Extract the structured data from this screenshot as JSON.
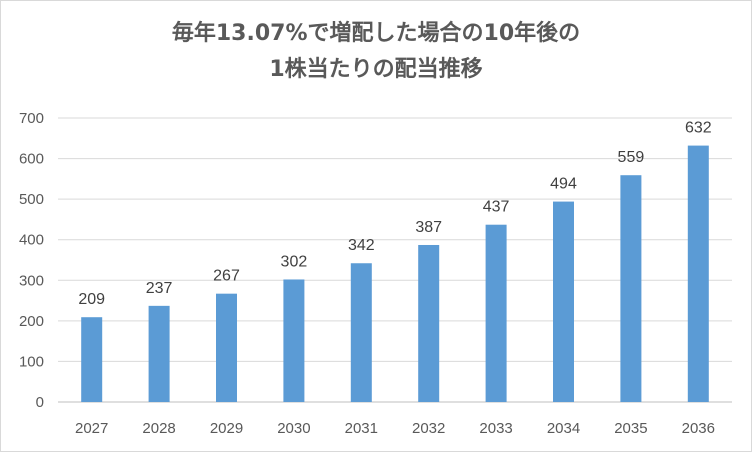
{
  "chart_data": {
    "type": "bar",
    "title_line1": "毎年13.07%で増配した場合の10年後の",
    "title_line2": "1株当たりの配当推移",
    "categories": [
      "2027",
      "2028",
      "2029",
      "2030",
      "2031",
      "2032",
      "2033",
      "2034",
      "2035",
      "2036"
    ],
    "values": [
      209,
      237,
      267,
      302,
      342,
      387,
      437,
      494,
      559,
      632
    ],
    "ylim": [
      0,
      700
    ],
    "yticks": [
      0,
      100,
      200,
      300,
      400,
      500,
      600,
      700
    ],
    "grid": true,
    "legend": "none",
    "bar_color": "#5b9bd5",
    "grid_color": "#d9d9d9"
  }
}
